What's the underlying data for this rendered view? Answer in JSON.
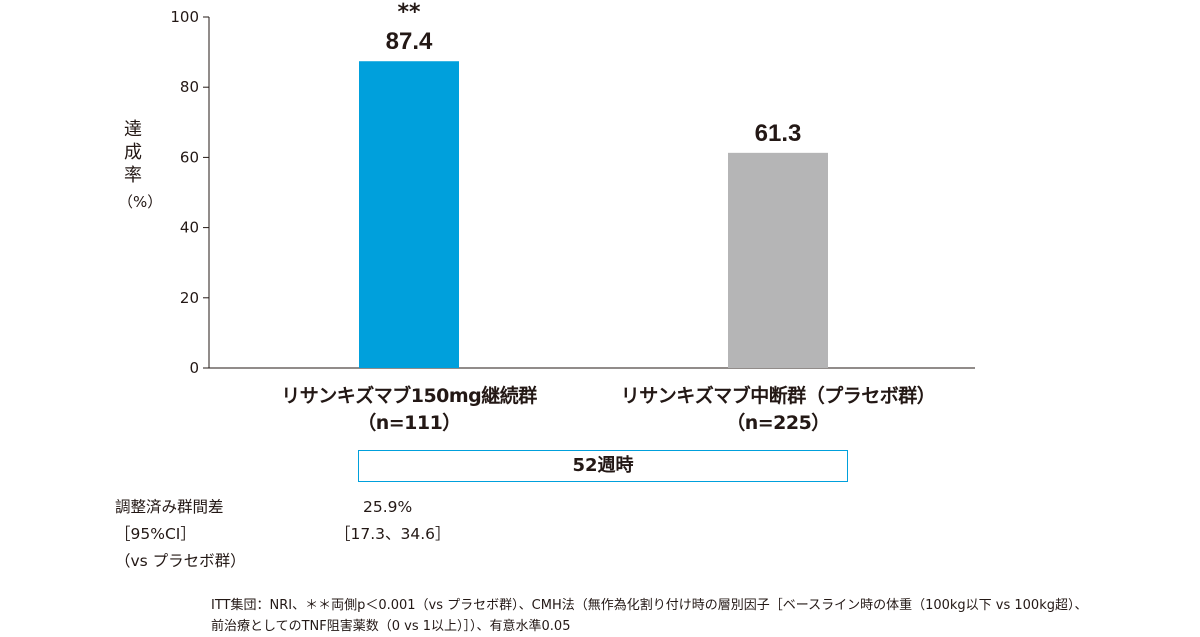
{
  "chart_data": {
    "type": "bar",
    "categories": [
      "リサンキズマブ150mg継続群（n=111）",
      "リサンキズマブ中断群（プラセボ群）（n=225）"
    ],
    "values": [
      87.4,
      61.3
    ],
    "value_labels": [
      "87.4",
      "61.3"
    ],
    "significance": [
      "**",
      ""
    ],
    "colors": [
      "#00a0dc",
      "#b5b5b6"
    ],
    "ylabel": "達成率（%）",
    "ylim": [
      0,
      100
    ],
    "yticks": [
      0,
      20,
      40,
      60,
      80,
      100
    ],
    "ytick_labels": [
      "0",
      "20",
      "40",
      "60",
      "80",
      "100"
    ],
    "grid": false
  },
  "labels": {
    "ylabel_chars": [
      "達",
      "成",
      "率"
    ],
    "ylabel_unit": "（%）",
    "cat1_line1": "リサンキズマブ150mg継続群",
    "cat1_line2": "（n=111）",
    "cat2_line1": "リサンキズマブ中断群（プラセボ群）",
    "cat2_line2": "（n=225）",
    "period": "52週時"
  },
  "stats": {
    "label1": "調整済み群間差",
    "value1": "25.9%",
    "label2": "［95%CI］",
    "value2": "［17.3、34.6］",
    "label3": "（vs プラセボ群）"
  },
  "footnote": {
    "line1": "ITT集団：NRI、＊＊両側p＜0.001（vs プラセボ群）、CMH法（無作為化割り付け時の層別因子［ベースライン時の体重（100kg以下 vs 100kg超）、",
    "line2": "前治療としてのTNF阻害薬数（0 vs 1以上）］）、有意水準0.05"
  }
}
